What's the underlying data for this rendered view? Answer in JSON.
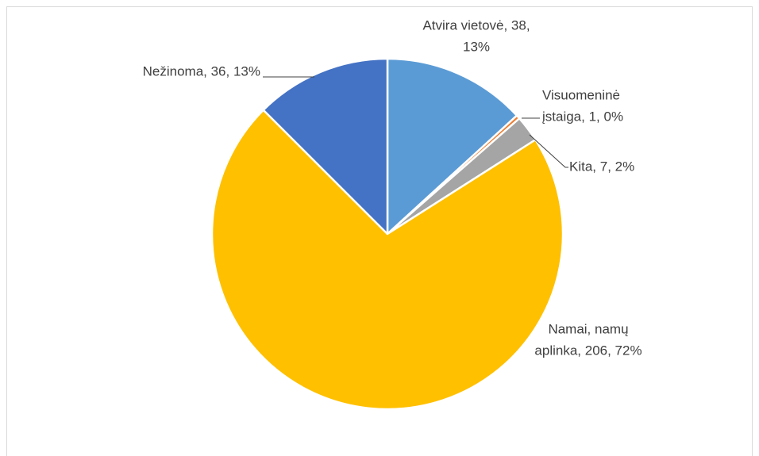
{
  "chart_data": {
    "type": "pie",
    "categories": [
      "Atvira vietovė",
      "Visuomeninė įstaiga",
      "Kita",
      "Namai, namų aplinka",
      "Nežinoma"
    ],
    "values": [
      38,
      1,
      7,
      206,
      36
    ],
    "value_labels": [
      [
        "Atvira vietovė, 38,",
        "13%"
      ],
      [
        "Visuomeninė",
        "įstaiga, 1, 0%"
      ],
      [
        "Kita, 7, 2%"
      ],
      [
        "Namai, namų",
        "aplinka, 206, 72%"
      ],
      [
        "Nežinoma, 36, 13%"
      ]
    ],
    "colors": [
      "#5b9bd5",
      "#ed7d31",
      "#a5a5a5",
      "#ffc000",
      "#4472c4"
    ]
  }
}
